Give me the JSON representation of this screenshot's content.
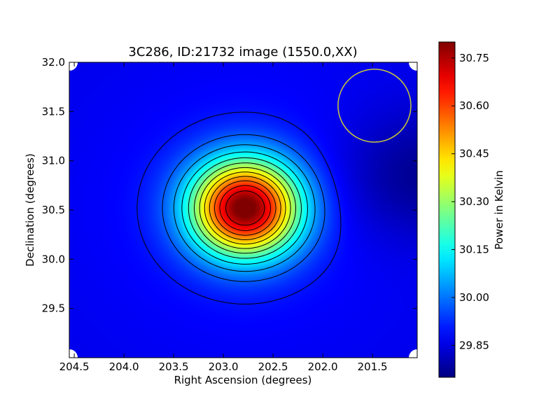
{
  "chart_data": {
    "type": "heatmap",
    "title": "3C286, ID:21732 image (1550.0,XX)",
    "xlabel": "Right Ascension (degrees)",
    "ylabel": "Declination (degrees)",
    "xlim": [
      204.55,
      201.05
    ],
    "ylim": [
      29.0,
      32.0
    ],
    "x_ticks": [
      204.5,
      204.0,
      203.5,
      203.0,
      202.5,
      202.0,
      201.5
    ],
    "x_tick_labels": [
      "204.5",
      "204.0",
      "203.5",
      "203.0",
      "202.5",
      "202.0",
      "201.5"
    ],
    "y_ticks": [
      29.5,
      30.0,
      30.5,
      31.0,
      31.5,
      32.0
    ],
    "y_tick_labels": [
      "29.5",
      "30.0",
      "30.5",
      "31.0",
      "31.5",
      "32.0"
    ],
    "source": {
      "ra": 202.78,
      "dec": 30.52,
      "peak_kelvin": 30.79,
      "sigma_ra_deg": 0.38,
      "sigma_dec_deg": 0.34
    },
    "background_kelvin": 29.86,
    "cold_region": {
      "ra": 201.05,
      "dec": 30.85,
      "value_kelvin": 29.76
    },
    "beam_circle": {
      "ra": 201.48,
      "dec": 31.56,
      "radius_deg": 0.37,
      "color": "#c8c83c"
    },
    "contour_color": "#000000",
    "colorbar": {
      "label": "Power in Kelvin",
      "min": 29.75,
      "max": 30.8,
      "ticks": [
        29.85,
        30.0,
        30.15,
        30.3,
        30.45,
        30.6,
        30.75
      ],
      "tick_labels": [
        "29.85",
        "30.00",
        "30.15",
        "30.30",
        "30.45",
        "30.60",
        "30.75"
      ],
      "colormap": "jet"
    },
    "grid": false
  }
}
